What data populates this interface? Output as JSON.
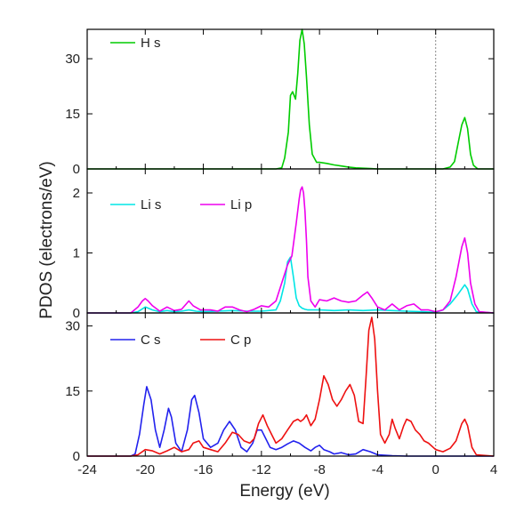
{
  "chart_data": [
    {
      "type": "line",
      "panel": "top",
      "ylim": [
        0,
        38
      ],
      "yticks": [
        "0",
        "15",
        "30"
      ],
      "ytick_values": [
        0,
        15,
        30
      ],
      "series": [
        {
          "name": "H s",
          "color": "#00cc00",
          "x": [
            -24,
            -11,
            -10.6,
            -10.4,
            -10.15,
            -10.0,
            -9.85,
            -9.65,
            -9.5,
            -9.35,
            -9.2,
            -9.05,
            -8.9,
            -8.7,
            -8.5,
            -8.2,
            -8.0,
            -7.5,
            -7.0,
            -6.5,
            -6.0,
            -5.5,
            -5.0,
            -4.5,
            -4.0,
            0.5,
            1.0,
            1.3,
            1.6,
            1.8,
            2.0,
            2.2,
            2.4,
            2.6,
            2.9,
            4
          ],
          "y": [
            0,
            0,
            0.3,
            3,
            10,
            20,
            21,
            19,
            26,
            35,
            38,
            34,
            25,
            12,
            4,
            1.8,
            1.8,
            1.5,
            1.1,
            0.8,
            0.5,
            0.3,
            0.2,
            0.1,
            0,
            0,
            0.5,
            2,
            8,
            12,
            14,
            11,
            4,
            1,
            0,
            0
          ]
        }
      ]
    },
    {
      "type": "line",
      "panel": "middle",
      "ylim": [
        0,
        2.4
      ],
      "yticks": [
        "0",
        "1",
        "2"
      ],
      "ytick_values": [
        0,
        1,
        2
      ],
      "series": [
        {
          "name": "Li s",
          "color": "#00e5e5",
          "x": [
            -24,
            -21,
            -20.5,
            -20.0,
            -19.5,
            -19,
            -18.5,
            -18,
            -17.5,
            -17,
            -16.5,
            -16,
            -15,
            -14,
            -13,
            -12,
            -11,
            -10.7,
            -10.4,
            -10.2,
            -10.0,
            -9.8,
            -9.6,
            -9.4,
            -9.2,
            -9.0,
            -8.8,
            -8,
            -7,
            -6,
            -5,
            -4,
            -3,
            -2,
            -1,
            0,
            0.5,
            1,
            1.5,
            2.0,
            2.2,
            2.5,
            2.8,
            4
          ],
          "y": [
            0,
            0,
            0.02,
            0.1,
            0.05,
            0.02,
            0.04,
            0.02,
            0.03,
            0.05,
            0.03,
            0.02,
            0.03,
            0.04,
            0.03,
            0.03,
            0.05,
            0.2,
            0.5,
            0.85,
            0.93,
            0.6,
            0.25,
            0.12,
            0.08,
            0.06,
            0.05,
            0.05,
            0.04,
            0.05,
            0.04,
            0.05,
            0.04,
            0.03,
            0.02,
            0.01,
            0.05,
            0.15,
            0.3,
            0.47,
            0.4,
            0.15,
            0.02,
            0
          ]
        },
        {
          "name": "Li p",
          "color": "#ee00ee",
          "x": [
            -24,
            -21,
            -20.5,
            -20.2,
            -20.0,
            -19.8,
            -19.5,
            -19.0,
            -18.5,
            -18.0,
            -17.5,
            -17.0,
            -16.7,
            -16.2,
            -15.5,
            -15.0,
            -14.5,
            -14.0,
            -13.5,
            -13.0,
            -12.5,
            -12.0,
            -11.5,
            -11.0,
            -10.6,
            -10.2,
            -9.9,
            -9.6,
            -9.4,
            -9.3,
            -9.2,
            -9.1,
            -9.0,
            -8.9,
            -8.8,
            -8.6,
            -8.3,
            -8.0,
            -7.5,
            -7.0,
            -6.5,
            -6.0,
            -5.5,
            -5.0,
            -4.7,
            -4.4,
            -4.0,
            -3.5,
            -3.0,
            -2.5,
            -2.0,
            -1.5,
            -1.0,
            -0.5,
            0.0,
            0.5,
            1.0,
            1.4,
            1.8,
            2.0,
            2.2,
            2.4,
            2.7,
            3.0,
            4
          ],
          "y": [
            0,
            0,
            0.1,
            0.2,
            0.24,
            0.2,
            0.12,
            0.03,
            0.1,
            0.04,
            0.06,
            0.2,
            0.12,
            0.05,
            0.05,
            0.03,
            0.1,
            0.1,
            0.05,
            0.02,
            0.06,
            0.12,
            0.1,
            0.2,
            0.5,
            0.8,
            0.95,
            1.5,
            1.9,
            2.05,
            2.1,
            2.0,
            1.7,
            1.2,
            0.6,
            0.2,
            0.1,
            0.22,
            0.2,
            0.25,
            0.2,
            0.18,
            0.2,
            0.3,
            0.35,
            0.25,
            0.1,
            0.05,
            0.15,
            0.05,
            0.12,
            0.15,
            0.05,
            0.05,
            0.02,
            0.05,
            0.2,
            0.6,
            1.1,
            1.25,
            1.0,
            0.5,
            0.15,
            0.02,
            0
          ]
        }
      ]
    },
    {
      "type": "line",
      "panel": "bottom",
      "ylim": [
        0,
        33
      ],
      "yticks": [
        "0",
        "15",
        "30"
      ],
      "ytick_values": [
        0,
        15,
        30
      ],
      "xlim": [
        -24,
        4
      ],
      "xticks": [
        "-24",
        "-20",
        "-16",
        "-12",
        "-8",
        "-4",
        "0",
        "4"
      ],
      "xtick_values": [
        -24,
        -20,
        -16,
        -12,
        -8,
        -4,
        0,
        4
      ],
      "xlabel": "Energy (eV)",
      "series": [
        {
          "name": "C s",
          "color": "#2222ee",
          "x": [
            -24,
            -21,
            -20.7,
            -20.4,
            -20.1,
            -19.9,
            -19.6,
            -19.3,
            -19.0,
            -18.7,
            -18.4,
            -18.2,
            -17.9,
            -17.5,
            -17.1,
            -16.8,
            -16.6,
            -16.3,
            -16.0,
            -15.5,
            -15.0,
            -14.6,
            -14.2,
            -13.8,
            -13.4,
            -13.0,
            -12.6,
            -12.3,
            -12.0,
            -11.7,
            -11.4,
            -11.0,
            -10.6,
            -10.2,
            -9.8,
            -9.4,
            -9.0,
            -8.6,
            -8.3,
            -8.0,
            -7.7,
            -7.3,
            -7.0,
            -6.5,
            -6.0,
            -5.5,
            -5.0,
            -4.5,
            -4.0,
            -3.0,
            -2.0,
            -1.0,
            0,
            4
          ],
          "y": [
            0,
            0,
            0.5,
            5,
            12,
            16,
            13,
            6,
            2,
            6,
            11,
            9,
            3,
            1,
            6,
            13,
            14,
            10,
            4,
            2,
            3,
            6,
            8,
            6,
            2,
            1,
            3,
            6,
            6,
            4,
            2,
            1.5,
            2,
            2.8,
            3.5,
            3.0,
            2.0,
            1.2,
            2.0,
            2.5,
            1.5,
            1.0,
            0.5,
            0.8,
            0.3,
            0.5,
            1.5,
            1.0,
            0.3,
            0.1,
            0,
            0,
            0,
            0
          ]
        },
        {
          "name": "C p",
          "color": "#ee1111",
          "x": [
            -24,
            -21,
            -20.5,
            -20,
            -19.5,
            -19,
            -18.5,
            -18,
            -17.5,
            -17,
            -16.7,
            -16.3,
            -16,
            -15.5,
            -15,
            -14.5,
            -14.2,
            -14,
            -13.6,
            -13.2,
            -12.8,
            -12.5,
            -12.2,
            -11.9,
            -11.6,
            -11.3,
            -11,
            -10.6,
            -10.2,
            -9.8,
            -9.5,
            -9.3,
            -9.1,
            -8.9,
            -8.6,
            -8.3,
            -8.0,
            -7.7,
            -7.4,
            -7.1,
            -6.8,
            -6.5,
            -6.2,
            -5.9,
            -5.6,
            -5.3,
            -5.0,
            -4.8,
            -4.6,
            -4.4,
            -4.2,
            -4.0,
            -3.8,
            -3.5,
            -3.2,
            -3.0,
            -2.8,
            -2.5,
            -2.2,
            -2.0,
            -1.7,
            -1.4,
            -1.1,
            -0.8,
            -0.5,
            0,
            0.5,
            1.0,
            1.4,
            1.8,
            2.0,
            2.2,
            2.5,
            2.8,
            4
          ],
          "y": [
            0,
            0,
            0.3,
            1.5,
            1.2,
            0.5,
            1.2,
            2.0,
            1.0,
            1.5,
            3.0,
            3.5,
            2.0,
            1.5,
            1.0,
            3.0,
            4.5,
            5.5,
            5.0,
            3.5,
            3.0,
            4.0,
            7.5,
            9.5,
            7.0,
            5.0,
            3.0,
            4.0,
            6.0,
            8.0,
            8.5,
            8.0,
            8.5,
            9.5,
            7.0,
            8.5,
            13.0,
            18.5,
            16.5,
            13.0,
            11.5,
            13.0,
            15.0,
            16.5,
            14.0,
            8.0,
            7.5,
            18.0,
            29.0,
            32.0,
            27.0,
            15.0,
            5.0,
            3.0,
            5.0,
            8.5,
            6.5,
            4.0,
            7.0,
            8.5,
            8.0,
            6.0,
            5.0,
            3.5,
            3.0,
            1.5,
            1.0,
            1.8,
            3.5,
            7.5,
            8.5,
            7.0,
            2.0,
            0.3,
            0
          ]
        }
      ]
    }
  ],
  "figure": {
    "ylabel": "PDOS (electrons/eV)",
    "fermi_line_at": 0,
    "axis_color": "#000000",
    "fermi_line_color": "#888888"
  }
}
